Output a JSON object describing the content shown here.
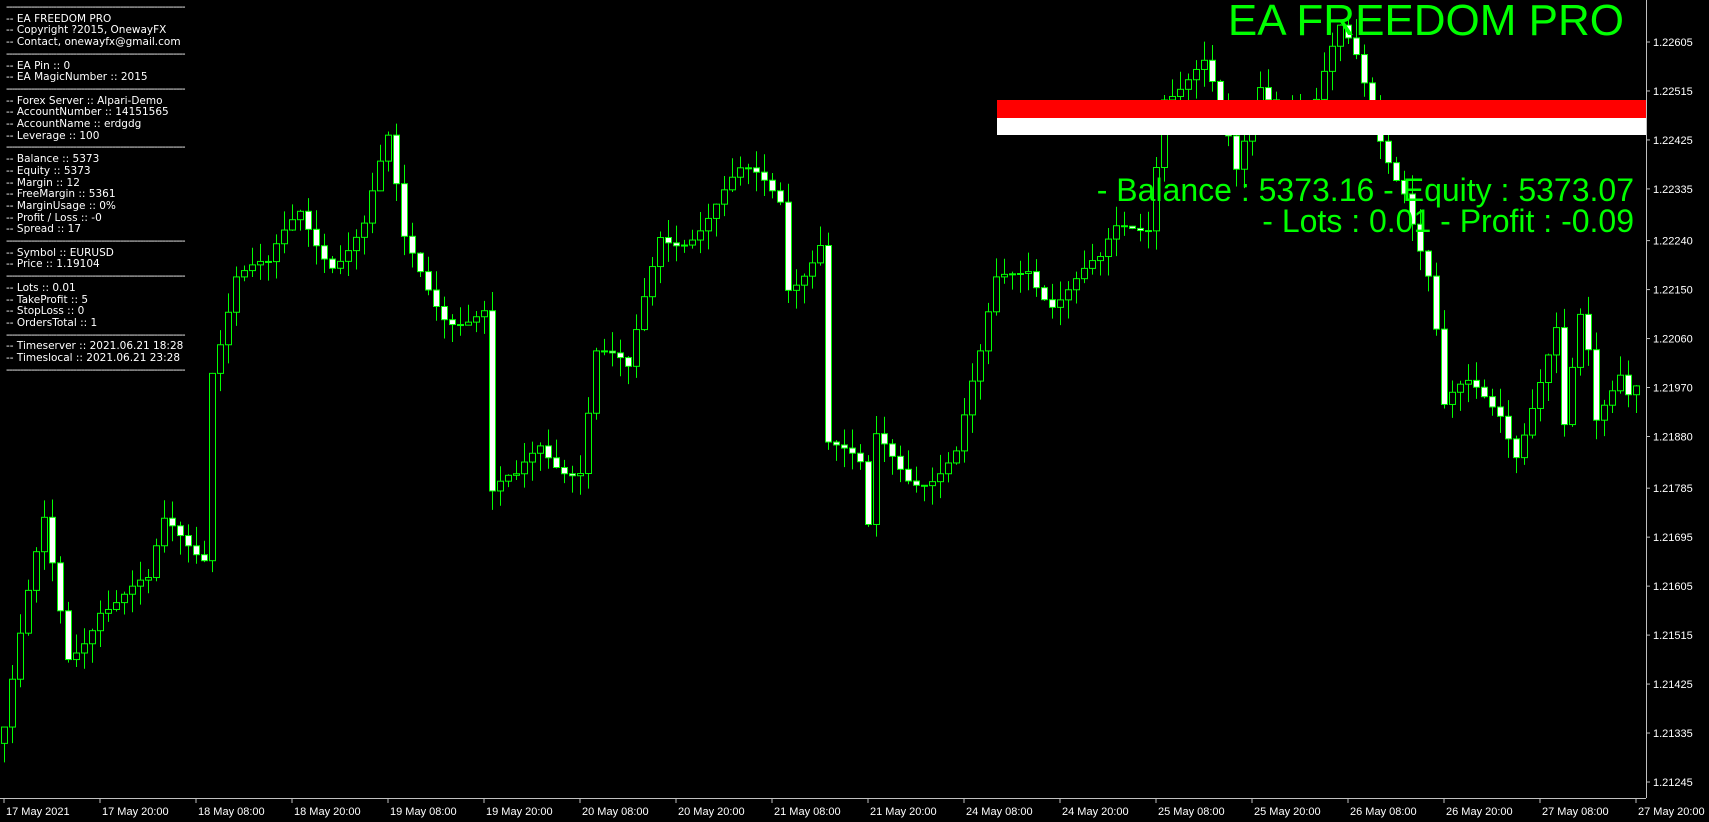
{
  "info_panel": {
    "separator": "----------------------------------------------------------------",
    "lines": [
      [
        "-- EA FREEDOM PRO",
        "-- Copyright ?2015, OnewayFX",
        "-- Contact, onewayfx@gmail.com"
      ],
      [
        "-- EA Pin :: 0",
        "-- EA MagicNumber :: 2015"
      ],
      [
        "-- Forex Server :: Alpari-Demo",
        "-- AccountNumber :: 14151565",
        "-- AccountName :: erdgdg",
        "-- Leverage :: 100"
      ],
      [
        "-- Balance :: 5373",
        "-- Equity :: 5373",
        "-- Margin :: 12",
        "-- FreeMargin :: 5361",
        "-- MarginUsage :: 0%",
        "-- Profit / Loss :: -0",
        "-- Spread :: 17"
      ],
      [
        "-- Symbol :: EURUSD",
        "-- Price :: 1.19104"
      ],
      [
        "-- Lots :: 0.01",
        "-- TakeProfit :: 5",
        "-- StopLoss :: 0",
        "-- OrdersTotal :: 1"
      ],
      [
        "-- Timeserver :: 2021.06.21 18:28",
        "-- Timeslocal :: 2021.06.21 23:28"
      ]
    ]
  },
  "overlay": {
    "title": "EA FREEDOM PRO",
    "balance_line": "- Balance : 5373.16 - Equity : 5373.07",
    "lots_line": "- Lots : 0.01 - Profit : -0.09",
    "bar_colors": [
      "#ff0000",
      "#ffffff"
    ]
  },
  "colors": {
    "background": "#000000",
    "candle_outline": "#00ff00",
    "bear_body": "#ffffff",
    "bull_body": "#000000",
    "text": "#00ff00"
  },
  "chart_data": {
    "type": "candlestick",
    "symbol": "EURUSD",
    "timeframe_note": "hourly candles",
    "y_ticks": [
      "1.22605",
      "1.22515",
      "1.22425",
      "1.22335",
      "1.22240",
      "1.22150",
      "1.22060",
      "1.21970",
      "1.21880",
      "1.21785",
      "1.21695",
      "1.21605",
      "1.21515",
      "1.21425",
      "1.21335",
      "1.21245"
    ],
    "ylim": [
      1.21245,
      1.22605
    ],
    "x_ticks": [
      "17 May 2021",
      "17 May 20:00",
      "18 May 08:00",
      "18 May 20:00",
      "19 May 08:00",
      "19 May 20:00",
      "20 May 08:00",
      "20 May 20:00",
      "21 May 08:00",
      "21 May 20:00",
      "24 May 08:00",
      "24 May 20:00",
      "25 May 08:00",
      "25 May 20:00",
      "26 May 08:00",
      "26 May 20:00",
      "27 May 08:00",
      "27 May 20:00"
    ],
    "close_path": [
      [
        0,
        1.21346
      ],
      [
        5,
        1.21693
      ],
      [
        8,
        1.21481
      ],
      [
        12,
        1.21597
      ],
      [
        18,
        1.21577
      ],
      [
        20,
        1.21693
      ],
      [
        25,
        1.21693
      ],
      [
        26,
        1.22041
      ],
      [
        29,
        1.22186
      ],
      [
        33,
        1.22157
      ],
      [
        37,
        1.22292
      ],
      [
        41,
        1.22234
      ],
      [
        45,
        1.22263
      ],
      [
        48,
        1.22389
      ],
      [
        50,
        1.22215
      ],
      [
        55,
        1.22138
      ],
      [
        60,
        1.22099
      ],
      [
        61,
        1.21751
      ],
      [
        64,
        1.2177
      ],
      [
        67,
        1.21867
      ],
      [
        72,
        1.21848
      ],
      [
        74,
        1.22041
      ],
      [
        78,
        1.21964
      ],
      [
        82,
        1.22253
      ],
      [
        87,
        1.22292
      ],
      [
        92,
        1.22331
      ],
      [
        97,
        1.22321
      ],
      [
        98,
        1.22176
      ],
      [
        102,
        1.22263
      ],
      [
        103,
        1.21886
      ],
      [
        107,
        1.2179
      ],
      [
        108,
        1.21674
      ],
      [
        109,
        1.21848
      ],
      [
        113,
        1.21828
      ],
      [
        119,
        1.21848
      ],
      [
        122,
        1.21993
      ],
      [
        124,
        1.22138
      ],
      [
        128,
        1.22215
      ],
      [
        131,
        1.22157
      ],
      [
        137,
        1.22166
      ],
      [
        139,
        1.22234
      ],
      [
        143,
        1.22292
      ],
      [
        145,
        1.22543
      ],
      [
        150,
        1.22543
      ],
      [
        154,
        1.2234
      ],
      [
        157,
        1.22543
      ],
      [
        164,
        1.22485
      ],
      [
        167,
        1.22591
      ],
      [
        169,
        1.22553
      ],
      [
        172,
        1.22447
      ],
      [
        175,
        1.22369
      ],
      [
        178,
        1.22176
      ],
      [
        179,
        1.2206
      ],
      [
        180,
        1.21906
      ],
      [
        183,
        1.21944
      ],
      [
        187,
        1.21944
      ],
      [
        189,
        1.21886
      ],
      [
        191,
        1.21964
      ],
      [
        194,
        1.2206
      ],
      [
        195,
        1.21867
      ],
      [
        197,
        1.2206
      ],
      [
        198,
        1.22002
      ],
      [
        199,
        1.21886
      ],
      [
        202,
        1.22022
      ],
      [
        204,
        1.21973
      ]
    ]
  }
}
